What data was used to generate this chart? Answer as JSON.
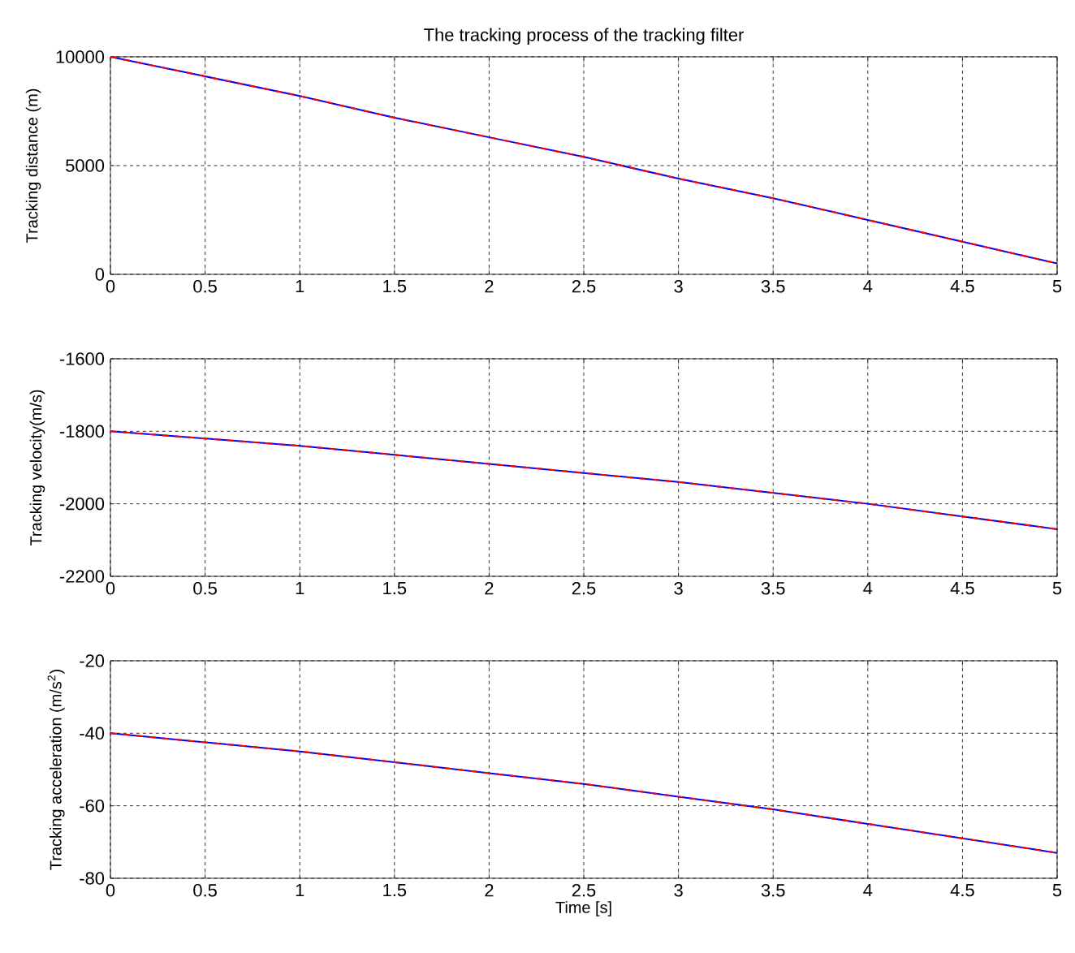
{
  "chart_data": [
    {
      "type": "line",
      "title": "The tracking process of the tracking filter",
      "ylabel": "Tracking distance (m)",
      "x": [
        0,
        0.5,
        1,
        1.5,
        2,
        2.5,
        3,
        3.5,
        4,
        4.5,
        5
      ],
      "series": [
        {
          "color": "#0000ff",
          "values": [
            10000,
            9100,
            8200,
            7200,
            6300,
            5400,
            4400,
            3500,
            2500,
            1500,
            500
          ]
        },
        {
          "color": "#ff0000",
          "line_style": "dashed",
          "values": [
            10000,
            9100,
            8200,
            7200,
            6300,
            5400,
            4400,
            3500,
            2500,
            1500,
            500
          ]
        }
      ],
      "xlim": [
        0,
        5
      ],
      "xticks": [
        0,
        0.5,
        1,
        1.5,
        2,
        2.5,
        3,
        3.5,
        4,
        4.5,
        5
      ],
      "ylim": [
        0,
        10000
      ],
      "yticks": [
        0,
        5000,
        10000
      ],
      "grid": true
    },
    {
      "type": "line",
      "ylabel": "Tracking velocity(m/s)",
      "x": [
        0,
        0.5,
        1,
        1.5,
        2,
        2.5,
        3,
        3.5,
        4,
        4.5,
        5
      ],
      "series": [
        {
          "color": "#0000ff",
          "values": [
            -1800,
            -1820,
            -1840,
            -1865,
            -1890,
            -1915,
            -1940,
            -1970,
            -2000,
            -2035,
            -2070
          ]
        },
        {
          "color": "#ff0000",
          "line_style": "dashed",
          "values": [
            -1800,
            -1820,
            -1840,
            -1865,
            -1890,
            -1915,
            -1940,
            -1970,
            -2000,
            -2035,
            -2070
          ]
        }
      ],
      "xlim": [
        0,
        5
      ],
      "xticks": [
        0,
        0.5,
        1,
        1.5,
        2,
        2.5,
        3,
        3.5,
        4,
        4.5,
        5
      ],
      "ylim": [
        -2200,
        -1600
      ],
      "yticks": [
        -2200,
        -2000,
        -1800,
        -1600
      ],
      "grid": true
    },
    {
      "type": "line",
      "xlabel": "Time [s]",
      "ylabel": "Tracking acceleration (m/s$^{2}$)",
      "x": [
        0,
        0.5,
        1,
        1.5,
        2,
        2.5,
        3,
        3.5,
        4,
        4.5,
        5
      ],
      "series": [
        {
          "color": "#0000ff",
          "values": [
            -40,
            -42.5,
            -45,
            -48,
            -51,
            -54,
            -57.5,
            -61,
            -65,
            -69,
            -73
          ]
        },
        {
          "color": "#ff0000",
          "line_style": "dashed",
          "values": [
            -40,
            -42.5,
            -45,
            -48,
            -51,
            -54,
            -57.5,
            -61,
            -65,
            -69,
            -73
          ]
        }
      ],
      "xlim": [
        0,
        5
      ],
      "xticks": [
        0,
        0.5,
        1,
        1.5,
        2,
        2.5,
        3,
        3.5,
        4,
        4.5,
        5
      ],
      "ylim": [
        -80,
        -20
      ],
      "yticks": [
        -80,
        -60,
        -40,
        -20
      ],
      "grid": true
    }
  ]
}
